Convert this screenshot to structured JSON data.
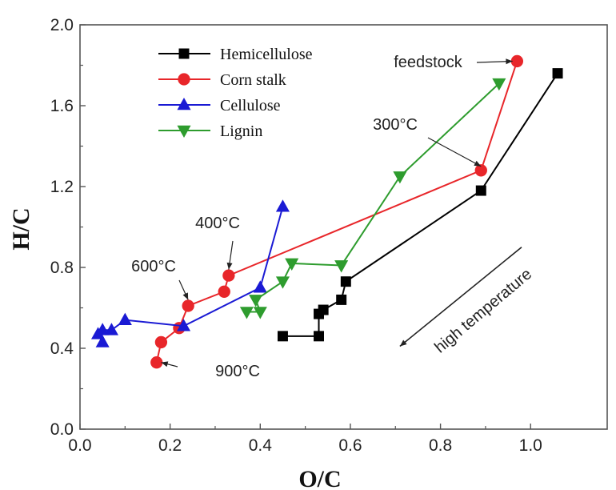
{
  "chart_data": {
    "type": "line",
    "xlabel": "O/C",
    "ylabel": "H/C",
    "xlim": [
      0.0,
      1.17
    ],
    "ylim": [
      0.0,
      2.0
    ],
    "x_ticks": [
      "0.0",
      "0.2",
      "0.4",
      "0.6",
      "0.8",
      "1.0"
    ],
    "y_ticks": [
      "0.0",
      "0.4",
      "0.8",
      "1.2",
      "1.6",
      "2.0"
    ],
    "legend_position": "top-left",
    "grid": false,
    "series": [
      {
        "name": "Hemicellulose",
        "color": "#000000",
        "marker": "square",
        "points": [
          [
            1.06,
            1.76
          ],
          [
            0.89,
            1.18
          ],
          [
            0.59,
            0.73
          ],
          [
            0.58,
            0.64
          ],
          [
            0.54,
            0.59
          ],
          [
            0.53,
            0.57
          ],
          [
            0.53,
            0.46
          ],
          [
            0.45,
            0.46
          ]
        ]
      },
      {
        "name": "Corn stalk",
        "color": "#e8262a",
        "marker": "circle",
        "points": [
          [
            0.97,
            1.82
          ],
          [
            0.89,
            1.28
          ],
          [
            0.33,
            0.76
          ],
          [
            0.32,
            0.68
          ],
          [
            0.24,
            0.61
          ],
          [
            0.22,
            0.5
          ],
          [
            0.18,
            0.43
          ],
          [
            0.17,
            0.33
          ]
        ]
      },
      {
        "name": "Cellulose",
        "color": "#1a1ad4",
        "marker": "triangle-up",
        "points": [
          [
            0.45,
            1.1
          ],
          [
            0.4,
            0.7
          ],
          [
            0.23,
            0.51
          ],
          [
            0.1,
            0.54
          ],
          [
            0.07,
            0.49
          ],
          [
            0.05,
            0.49
          ],
          [
            0.04,
            0.47
          ],
          [
            0.05,
            0.43
          ]
        ]
      },
      {
        "name": "Lignin",
        "color": "#2e9c2e",
        "marker": "triangle-down",
        "points": [
          [
            0.93,
            1.71
          ],
          [
            0.71,
            1.25
          ],
          [
            0.58,
            0.81
          ],
          [
            0.47,
            0.82
          ],
          [
            0.45,
            0.73
          ],
          [
            0.39,
            0.64
          ],
          [
            0.4,
            0.58
          ],
          [
            0.37,
            0.58
          ]
        ]
      }
    ],
    "annotations": [
      {
        "text": "feedstock",
        "arrow_to": [
          0.96,
          1.82
        ]
      },
      {
        "text": "300°C",
        "arrow_to": [
          0.89,
          1.3
        ]
      },
      {
        "text": "400°C",
        "arrow_to": [
          0.33,
          0.79
        ]
      },
      {
        "text": "600°C",
        "arrow_to": [
          0.24,
          0.64
        ]
      },
      {
        "text": "900°C",
        "arrow_to": [
          0.18,
          0.33
        ]
      },
      {
        "text": "high temperature",
        "arrow_from": [
          0.98,
          0.9
        ],
        "arrow_to": [
          0.71,
          0.41
        ]
      }
    ]
  }
}
